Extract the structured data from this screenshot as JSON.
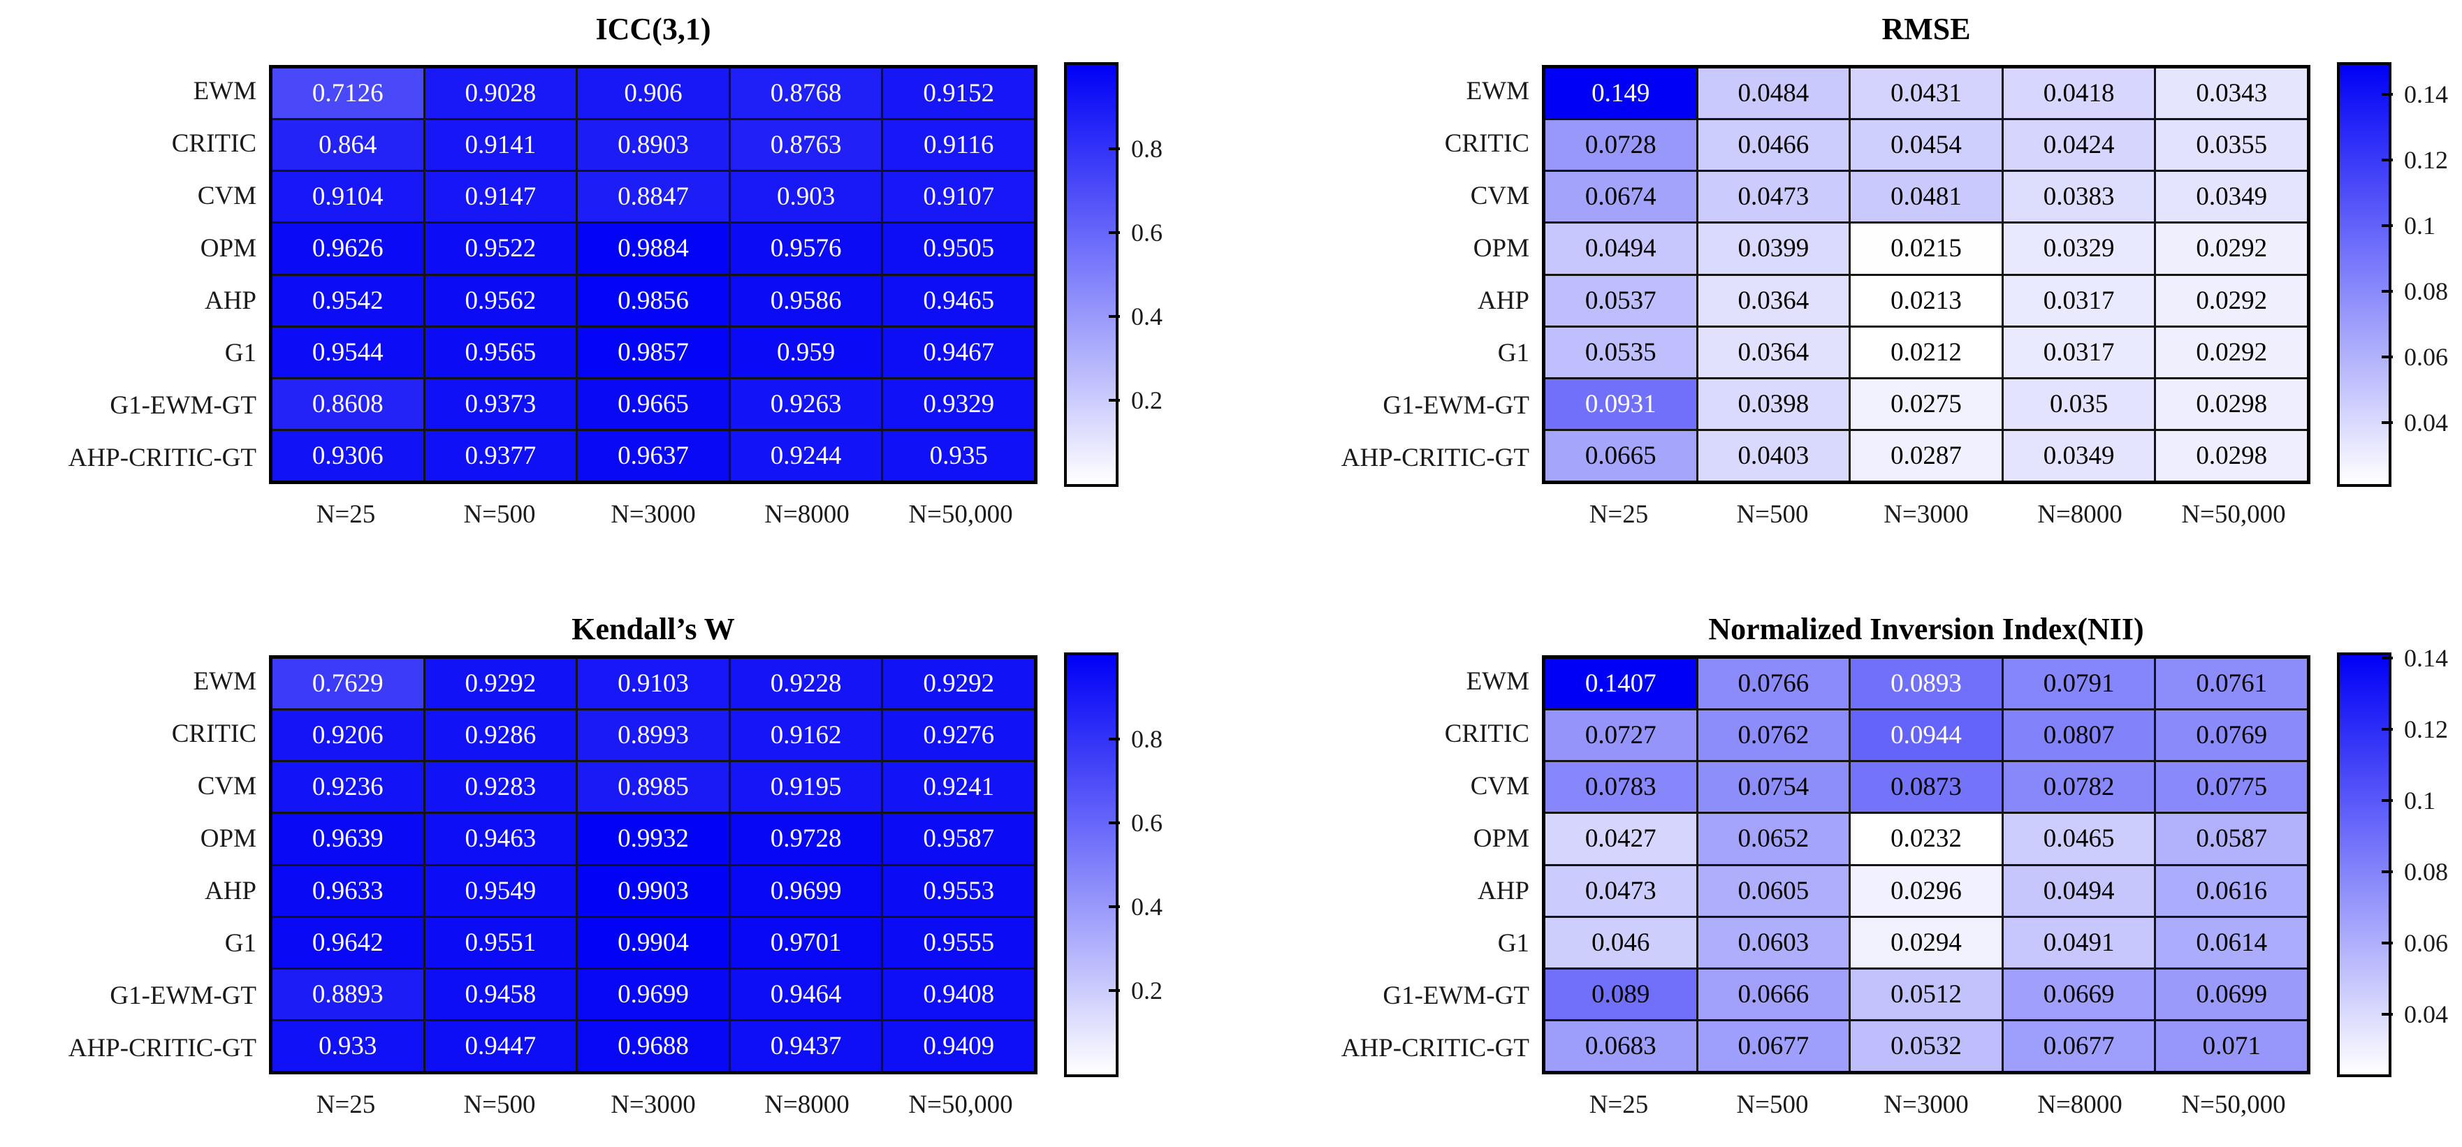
{
  "colors": {
    "heat_max": "#0000f6",
    "heat_min": "#ffffff",
    "grid_line": "#141414",
    "cell_text_light": "#ffffff",
    "cell_text_dark": "#000000",
    "label_color": "#1a1a1a"
  },
  "text_color_rule": {
    "white_if_t_above": 0.56
  },
  "shared": {
    "rows": [
      "EWM",
      "CRITIC",
      "CVM",
      "OPM",
      "AHP",
      "G1",
      "G1-EWM-GT",
      "AHP-CRITIC-GT"
    ],
    "columns": [
      "N=25",
      "N=500",
      "N=3000",
      "N=8000",
      "N=50,000"
    ]
  },
  "chart_data": [
    {
      "type": "heatmap",
      "title": "ICC(3,1)",
      "rows": [
        "EWM",
        "CRITIC",
        "CVM",
        "OPM",
        "AHP",
        "G1",
        "G1-EWM-GT",
        "AHP-CRITIC-GT"
      ],
      "columns": [
        "N=25",
        "N=500",
        "N=3000",
        "N=8000",
        "N=50,000"
      ],
      "values": [
        [
          0.7126,
          0.9028,
          0.906,
          0.8768,
          0.9152
        ],
        [
          0.864,
          0.9141,
          0.8903,
          0.8763,
          0.9116
        ],
        [
          0.9104,
          0.9147,
          0.8847,
          0.903,
          0.9107
        ],
        [
          0.9626,
          0.9522,
          0.9884,
          0.9576,
          0.9505
        ],
        [
          0.9542,
          0.9562,
          0.9856,
          0.9586,
          0.9465
        ],
        [
          0.9544,
          0.9565,
          0.9857,
          0.959,
          0.9467
        ],
        [
          0.8608,
          0.9373,
          0.9665,
          0.9263,
          0.9329
        ],
        [
          0.9306,
          0.9377,
          0.9637,
          0.9244,
          0.935
        ]
      ],
      "color_scale": {
        "min": 0,
        "max": 1
      },
      "colorbar_ticks": [
        0.8,
        0.6,
        0.4,
        0.2
      ],
      "legend_position": "right",
      "grid": true
    },
    {
      "type": "heatmap",
      "title": "RMSE",
      "rows": [
        "EWM",
        "CRITIC",
        "CVM",
        "OPM",
        "AHP",
        "G1",
        "G1-EWM-GT",
        "AHP-CRITIC-GT"
      ],
      "columns": [
        "N=25",
        "N=500",
        "N=3000",
        "N=8000",
        "N=50,000"
      ],
      "values": [
        [
          0.149,
          0.0484,
          0.0431,
          0.0418,
          0.0343
        ],
        [
          0.0728,
          0.0466,
          0.0454,
          0.0424,
          0.0355
        ],
        [
          0.0674,
          0.0473,
          0.0481,
          0.0383,
          0.0349
        ],
        [
          0.0494,
          0.0399,
          0.0215,
          0.0329,
          0.0292
        ],
        [
          0.0537,
          0.0364,
          0.0213,
          0.0317,
          0.0292
        ],
        [
          0.0535,
          0.0364,
          0.0212,
          0.0317,
          0.0292
        ],
        [
          0.0931,
          0.0398,
          0.0275,
          0.035,
          0.0298
        ],
        [
          0.0665,
          0.0403,
          0.0287,
          0.0349,
          0.0298
        ]
      ],
      "color_scale": {
        "min": 0.0212,
        "max": 0.149
      },
      "colorbar_ticks": [
        0.14,
        0.12,
        0.1,
        0.08,
        0.06,
        0.04
      ],
      "legend_position": "right",
      "grid": true
    },
    {
      "type": "heatmap",
      "title": "Kendall’s W",
      "rows": [
        "EWM",
        "CRITIC",
        "CVM",
        "OPM",
        "AHP",
        "G1",
        "G1-EWM-GT",
        "AHP-CRITIC-GT"
      ],
      "columns": [
        "N=25",
        "N=500",
        "N=3000",
        "N=8000",
        "N=50,000"
      ],
      "values": [
        [
          0.7629,
          0.9292,
          0.9103,
          0.9228,
          0.9292
        ],
        [
          0.9206,
          0.9286,
          0.8993,
          0.9162,
          0.9276
        ],
        [
          0.9236,
          0.9283,
          0.8985,
          0.9195,
          0.9241
        ],
        [
          0.9639,
          0.9463,
          0.9932,
          0.9728,
          0.9587
        ],
        [
          0.9633,
          0.9549,
          0.9903,
          0.9699,
          0.9553
        ],
        [
          0.9642,
          0.9551,
          0.9904,
          0.9701,
          0.9555
        ],
        [
          0.8893,
          0.9458,
          0.9699,
          0.9464,
          0.9408
        ],
        [
          0.933,
          0.9447,
          0.9688,
          0.9437,
          0.9409
        ]
      ],
      "color_scale": {
        "min": 0,
        "max": 1
      },
      "colorbar_ticks": [
        0.8,
        0.6,
        0.4,
        0.2
      ],
      "legend_position": "right",
      "grid": true
    },
    {
      "type": "heatmap",
      "title": "Normalized Inversion Index(NII)",
      "rows": [
        "EWM",
        "CRITIC",
        "CVM",
        "OPM",
        "AHP",
        "G1",
        "G1-EWM-GT",
        "AHP-CRITIC-GT"
      ],
      "columns": [
        "N=25",
        "N=500",
        "N=3000",
        "N=8000",
        "N=50,000"
      ],
      "values": [
        [
          0.1407,
          0.0766,
          0.0893,
          0.0791,
          0.0761
        ],
        [
          0.0727,
          0.0762,
          0.0944,
          0.0807,
          0.0769
        ],
        [
          0.0783,
          0.0754,
          0.0873,
          0.0782,
          0.0775
        ],
        [
          0.0427,
          0.0652,
          0.0232,
          0.0465,
          0.0587
        ],
        [
          0.0473,
          0.0605,
          0.0296,
          0.0494,
          0.0616
        ],
        [
          0.046,
          0.0603,
          0.0294,
          0.0491,
          0.0614
        ],
        [
          0.089,
          0.0666,
          0.0512,
          0.0669,
          0.0699
        ],
        [
          0.0683,
          0.0677,
          0.0532,
          0.0677,
          0.071
        ]
      ],
      "color_scale": {
        "min": 0.0232,
        "max": 0.1407
      },
      "colorbar_ticks": [
        0.14,
        0.12,
        0.1,
        0.08,
        0.06,
        0.04
      ],
      "legend_position": "right",
      "grid": true
    }
  ]
}
